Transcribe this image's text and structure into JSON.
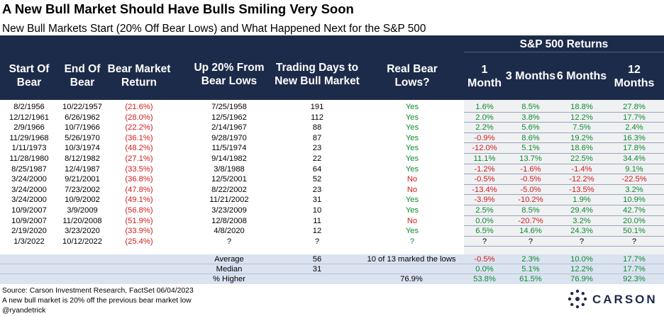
{
  "title": "A New Bull Market Should Have Bulls Smiling Very Soon",
  "subtitle": "New Bull Markets Start (20% Off Bear Lows) and What Happened Next for the S&P 500",
  "header": {
    "group_label": "S&P 500 Returns",
    "columns": [
      "Start Of Bear",
      "End Of Bear",
      "Bear Market Return",
      "Up 20% From Bear Lows",
      "Trading Days to New Bull Market",
      "Real Bear Lows?",
      "1 Month",
      "3 Months",
      "6 Months",
      "12 Months"
    ]
  },
  "rows": [
    [
      "8/2/1956",
      "10/22/1957",
      "(21.6%)",
      "7/25/1958",
      "191",
      "Yes",
      "1.6%",
      "8.5%",
      "18.8%",
      "27.8%"
    ],
    [
      "12/12/1961",
      "6/26/1962",
      "(28.0%)",
      "12/5/1962",
      "112",
      "Yes",
      "2.0%",
      "3.8%",
      "12.2%",
      "17.7%"
    ],
    [
      "2/9/1966",
      "10/7/1966",
      "(22.2%)",
      "2/14/1967",
      "88",
      "Yes",
      "2.2%",
      "5.6%",
      "7.5%",
      "2.4%"
    ],
    [
      "11/29/1968",
      "5/26/1970",
      "(36.1%)",
      "9/28/1970",
      "87",
      "Yes",
      "-0.9%",
      "8.6%",
      "19.2%",
      "16.3%"
    ],
    [
      "1/11/1973",
      "10/3/1974",
      "(48.2%)",
      "11/5/1974",
      "23",
      "Yes",
      "-12.0%",
      "5.1%",
      "18.6%",
      "17.8%"
    ],
    [
      "11/28/1980",
      "8/12/1982",
      "(27.1%)",
      "9/14/1982",
      "22",
      "Yes",
      "11.1%",
      "13.7%",
      "22.5%",
      "34.4%"
    ],
    [
      "8/25/1987",
      "12/4/1987",
      "(33.5%)",
      "3/8/1988",
      "64",
      "Yes",
      "-1.2%",
      "-1.6%",
      "-1.4%",
      "9.1%"
    ],
    [
      "3/24/2000",
      "9/21/2001",
      "(36.8%)",
      "12/5/2001",
      "52",
      "No",
      "-0.5%",
      "-0.5%",
      "-12.2%",
      "-22.5%"
    ],
    [
      "3/24/2000",
      "7/23/2002",
      "(47.8%)",
      "8/22/2002",
      "23",
      "No",
      "-13.4%",
      "-5.0%",
      "-13.5%",
      "3.2%"
    ],
    [
      "3/24/2000",
      "10/9/2002",
      "(49.1%)",
      "11/21/2002",
      "31",
      "Yes",
      "-3.9%",
      "-10.2%",
      "1.9%",
      "10.9%"
    ],
    [
      "10/9/2007",
      "3/9/2009",
      "(56.8%)",
      "3/23/2009",
      "10",
      "Yes",
      "2.5%",
      "8.5%",
      "29.4%",
      "42.7%"
    ],
    [
      "10/9/2007",
      "11/20/2008",
      "(51.9%)",
      "12/8/2008",
      "11",
      "No",
      "0.0%",
      "-20.7%",
      "3.2%",
      "20.0%"
    ],
    [
      "2/19/2020",
      "3/23/2020",
      "(33.9%)",
      "4/8/2020",
      "12",
      "Yes",
      "6.5%",
      "14.6%",
      "24.3%",
      "50.1%"
    ],
    [
      "1/3/2022",
      "10/12/2022",
      "(25.4%)",
      "?",
      "?",
      "?",
      "?",
      "?",
      "?",
      "?"
    ]
  ],
  "summary": [
    {
      "label": "Average",
      "days": "56",
      "real": "10 of 13 marked the lows",
      "m1": "-0.5%",
      "m3": "2.3%",
      "m6": "10.0%",
      "m12": "17.7%"
    },
    {
      "label": "Median",
      "days": "31",
      "real": "",
      "m1": "0.0%",
      "m3": "5.1%",
      "m6": "12.2%",
      "m12": "17.7%"
    },
    {
      "label": "% Higher",
      "days": "",
      "real": "76.9%",
      "m1": "53.8%",
      "m3": "61.5%",
      "m6": "76.9%",
      "m12": "92.3%"
    }
  ],
  "footer": {
    "source": "Source: Carson Investment Research, FactSet 06/04/2023",
    "note": "A new bull market is 20% off the previous bear market low",
    "handle": "@ryandetrick"
  },
  "logo": {
    "text": "CARSON"
  },
  "colors": {
    "header_bg": "#1d2b4a",
    "positive": "#0c8c2d",
    "negative": "#d21b1b",
    "summary_bg": "#dbe3f1",
    "returns_bg": "#f0f1f3"
  }
}
